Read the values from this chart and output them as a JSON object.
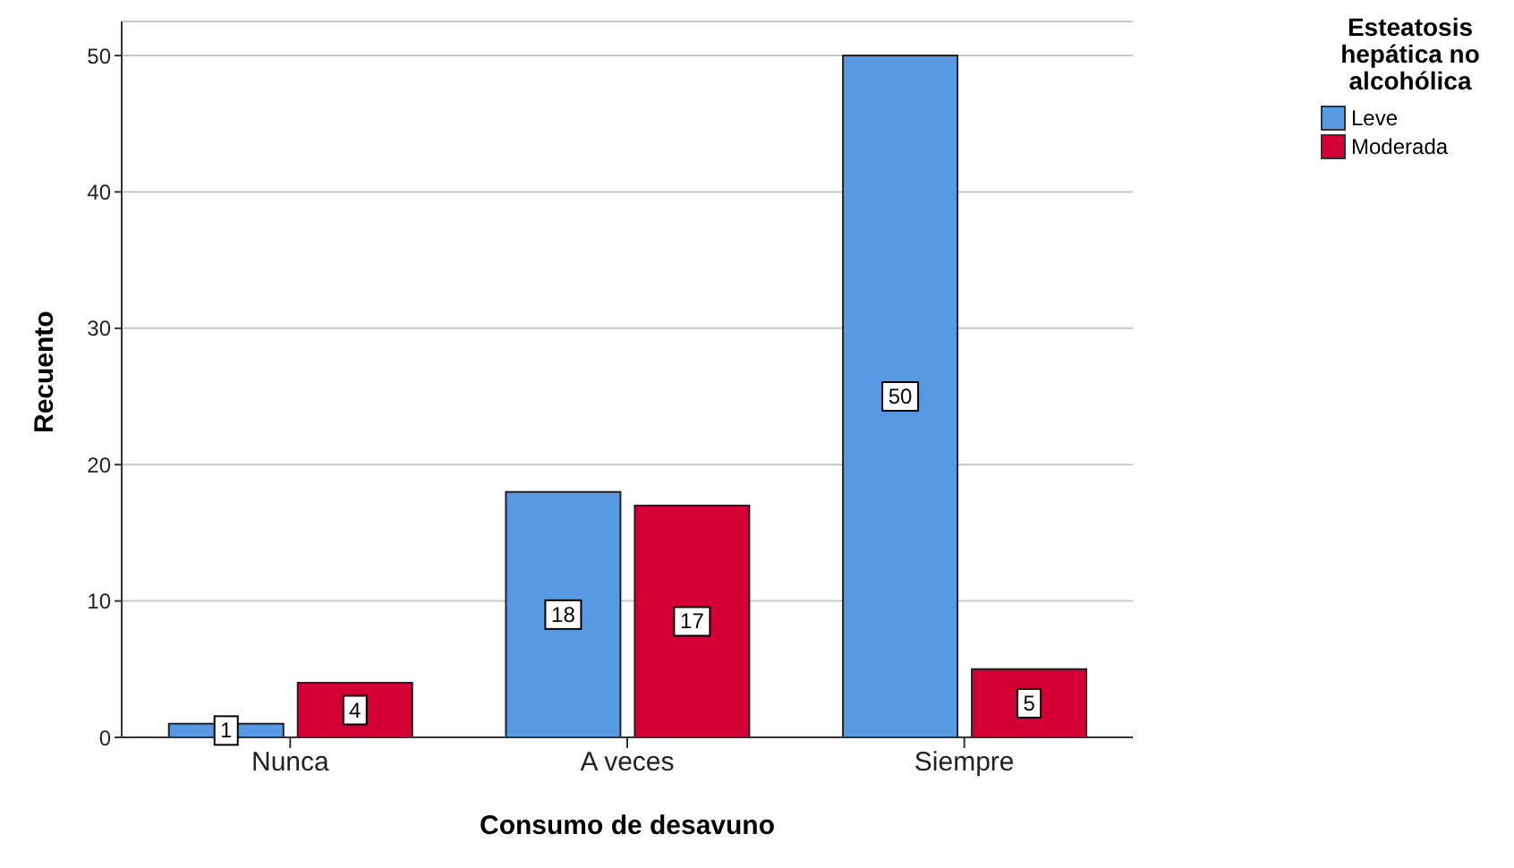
{
  "chart_data": {
    "type": "bar",
    "xlabel": "Consumo de desavuno",
    "ylabel": "Recuento",
    "legend_title": "Esteatosis hepática no alcohólica",
    "categories": [
      "Nunca",
      "A veces",
      "Siempre"
    ],
    "series": [
      {
        "name": "Leve",
        "color": "#5799e3",
        "values": [
          1,
          18,
          50
        ]
      },
      {
        "name": "Moderada",
        "color": "#d40035",
        "values": [
          4,
          17,
          5
        ]
      }
    ],
    "ylim": [
      0,
      52.5
    ],
    "yticks": [
      0,
      10,
      20,
      30,
      40,
      50
    ],
    "grid": "y",
    "legend": "top right",
    "data_labels": true
  }
}
